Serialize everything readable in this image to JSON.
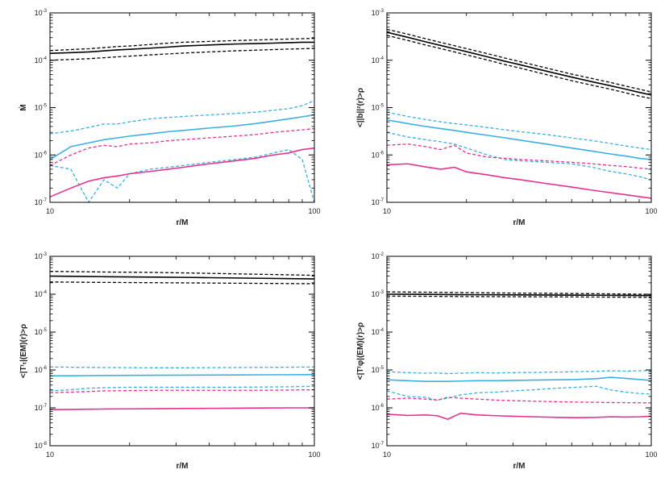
{
  "chart_data": [
    {
      "type": "line",
      "xlabel": "r/M",
      "ylabel": "Ṁ",
      "xscale": "log",
      "yscale": "log",
      "xlim": [
        10,
        100
      ],
      "ylim": [
        1e-07,
        0.001
      ],
      "x_ticks": [
        "10",
        "100"
      ],
      "y_ticks": [
        {
          "base": "10",
          "exp": "-7"
        },
        {
          "base": "10",
          "exp": "-6"
        },
        {
          "base": "10",
          "exp": "-5"
        },
        {
          "base": "10",
          "exp": "-4"
        },
        {
          "base": "10",
          "exp": "-3"
        }
      ],
      "x": [
        10,
        12,
        14,
        16,
        18,
        20,
        24,
        28,
        32,
        40,
        50,
        60,
        70,
        80,
        90,
        100
      ],
      "series": [
        {
          "name": "black-solid",
          "color": "#000000",
          "dash": "solid",
          "values": [
            0.00014,
            0.000145,
            0.00015,
            0.000158,
            0.000165,
            0.00017,
            0.00018,
            0.00019,
            0.0002,
            0.00021,
            0.00022,
            0.000225,
            0.00023,
            0.000235,
            0.00024,
            0.00024
          ]
        },
        {
          "name": "black-dashed-upper",
          "color": "#000000",
          "dash": "dashed",
          "values": [
            0.00016,
            0.000168,
            0.000175,
            0.000185,
            0.000195,
            0.0002,
            0.000215,
            0.00023,
            0.00024,
            0.00025,
            0.00026,
            0.000268,
            0.000275,
            0.00028,
            0.000285,
            0.00029
          ]
        },
        {
          "name": "black-dashed-lower",
          "color": "#000000",
          "dash": "dashed",
          "values": [
            0.0001,
            0.000104,
            0.000108,
            0.000113,
            0.000118,
            0.000122,
            0.00013,
            0.000136,
            0.000142,
            0.00015,
            0.000158,
            0.000163,
            0.000168,
            0.000172,
            0.000175,
            0.000178
          ]
        },
        {
          "name": "cyan-solid",
          "color": "#3bb0e0",
          "dash": "solid",
          "values": [
            8e-07,
            1.5e-06,
            1.8e-06,
            2.1e-06,
            2.3e-06,
            2.5e-06,
            2.8e-06,
            3.1e-06,
            3.3e-06,
            3.7e-06,
            4.1e-06,
            4.6e-06,
            5.2e-06,
            5.8e-06,
            6.4e-06,
            7e-06
          ]
        },
        {
          "name": "cyan-dashed-upper",
          "color": "#3bb0e0",
          "dash": "dashed",
          "values": [
            2.8e-06,
            3.2e-06,
            3.8e-06,
            4.5e-06,
            4.5e-06,
            5e-06,
            5.8e-06,
            6.2e-06,
            6.5e-06,
            7e-06,
            7.5e-06,
            8e-06,
            8.8e-06,
            9.5e-06,
            1.1e-05,
            1.4e-05
          ]
        },
        {
          "name": "cyan-dashed-lower",
          "color": "#3bb0e0",
          "dash": "dashed",
          "values": [
            6e-07,
            5e-07,
            1e-07,
            3e-07,
            2e-07,
            4e-07,
            5e-07,
            5.5e-07,
            6e-07,
            7e-07,
            8e-07,
            9e-07,
            1.1e-06,
            1.3e-06,
            8e-07,
            1e-07
          ]
        },
        {
          "name": "magenta-dashed",
          "color": "#e8308f",
          "dash": "dashed",
          "values": [
            6e-07,
            1e-06,
            1.4e-06,
            1.6e-06,
            1.5e-06,
            1.7e-06,
            1.8e-06,
            2e-06,
            2.1e-06,
            2.3e-06,
            2.5e-06,
            2.7e-06,
            3e-06,
            3.2e-06,
            3.4e-06,
            3.6e-06
          ]
        },
        {
          "name": "magenta-solid",
          "color": "#e8308f",
          "dash": "solid",
          "values": [
            1.3e-07,
            2e-07,
            2.8e-07,
            3.3e-07,
            3.6e-07,
            4e-07,
            4.5e-07,
            5e-07,
            5.5e-07,
            6.5e-07,
            7.5e-07,
            8.5e-07,
            1e-06,
            1.1e-06,
            1.3e-06,
            1.4e-06
          ]
        }
      ]
    },
    {
      "type": "line",
      "xlabel": "r/M",
      "ylabel": "<||b||²(r)>ρ",
      "xscale": "log",
      "yscale": "log",
      "xlim": [
        10,
        100
      ],
      "ylim": [
        1e-07,
        0.001
      ],
      "x_ticks": [
        "10",
        "100"
      ],
      "y_ticks": [
        {
          "base": "10",
          "exp": "-7"
        },
        {
          "base": "10",
          "exp": "-6"
        },
        {
          "base": "10",
          "exp": "-5"
        },
        {
          "base": "10",
          "exp": "-4"
        },
        {
          "base": "10",
          "exp": "-3"
        }
      ],
      "x": [
        10,
        12,
        14,
        16,
        18,
        20,
        24,
        28,
        32,
        40,
        50,
        60,
        70,
        80,
        90,
        100
      ],
      "series": [
        {
          "name": "black-solid",
          "color": "#000000",
          "dash": "solid",
          "values": [
            0.00039,
            0.000305,
            0.000245,
            0.000205,
            0.000175,
            0.000152,
            0.000118,
            9.5e-05,
            8e-05,
            5.9e-05,
            4.4e-05,
            3.5e-05,
            2.9e-05,
            2.45e-05,
            2.1e-05,
            1.85e-05
          ]
        },
        {
          "name": "black-dashed-upper",
          "color": "#000000",
          "dash": "dashed",
          "values": [
            0.00045,
            0.000355,
            0.000285,
            0.000238,
            0.000203,
            0.000176,
            0.000138,
            0.000111,
            9.3e-05,
            6.9e-05,
            5.1e-05,
            4.1e-05,
            3.4e-05,
            2.85e-05,
            2.45e-05,
            2.15e-05
          ]
        },
        {
          "name": "black-dashed-lower",
          "color": "#000000",
          "dash": "dashed",
          "values": [
            0.000335,
            0.000262,
            0.00021,
            0.000176,
            0.00015,
            0.00013,
            0.000101,
            8.1e-05,
            6.8e-05,
            5e-05,
            3.7e-05,
            2.95e-05,
            2.45e-05,
            2.05e-05,
            1.75e-05,
            1.55e-05
          ]
        },
        {
          "name": "cyan-dashed-upper",
          "color": "#3bb0e0",
          "dash": "dashed",
          "values": [
            8e-06,
            6.5e-06,
            5.6e-06,
            5e-06,
            4.6e-06,
            4.3e-06,
            3.8e-06,
            3.4e-06,
            3.1e-06,
            2.7e-06,
            2.3e-06,
            2e-06,
            1.75e-06,
            1.55e-06,
            1.4e-06,
            1.3e-06
          ]
        },
        {
          "name": "cyan-solid",
          "color": "#3bb0e0",
          "dash": "solid",
          "values": [
            5.5e-06,
            4.6e-06,
            4e-06,
            3.6e-06,
            3.3e-06,
            3e-06,
            2.6e-06,
            2.3e-06,
            2.05e-06,
            1.7e-06,
            1.4e-06,
            1.2e-06,
            1.05e-06,
            9.5e-07,
            8.5e-07,
            8e-07
          ]
        },
        {
          "name": "cyan-dashed-lower",
          "color": "#3bb0e0",
          "dash": "dashed",
          "values": [
            3e-06,
            2.4e-06,
            2.1e-06,
            1.9e-06,
            1.7e-06,
            1.4e-06,
            1e-06,
            8e-07,
            7.5e-07,
            7e-07,
            6.5e-07,
            5.5e-07,
            4.5e-07,
            4e-07,
            3.5e-07,
            3e-07
          ]
        },
        {
          "name": "magenta-dashed",
          "color": "#e8308f",
          "dash": "dashed",
          "values": [
            1.6e-06,
            1.7e-06,
            1.5e-06,
            1.3e-06,
            1.6e-06,
            1.1e-06,
            9e-07,
            8.5e-07,
            8e-07,
            7.5e-07,
            7e-07,
            6.5e-07,
            6e-07,
            5.7e-07,
            5.3e-07,
            5e-07
          ]
        },
        {
          "name": "magenta-solid",
          "color": "#e8308f",
          "dash": "solid",
          "values": [
            6.2e-07,
            6.5e-07,
            5.6e-07,
            5e-07,
            5.5e-07,
            4.4e-07,
            3.8e-07,
            3.3e-07,
            3e-07,
            2.5e-07,
            2.1e-07,
            1.8e-07,
            1.6e-07,
            1.45e-07,
            1.32e-07,
            1.22e-07
          ]
        }
      ]
    },
    {
      "type": "line",
      "xlabel": "r/M",
      "ylabel": "<|Tʳₜ|(EM)(r)>ρ",
      "xscale": "log",
      "yscale": "log",
      "xlim": [
        10,
        100
      ],
      "ylim": [
        1e-08,
        0.001
      ],
      "x_ticks": [
        "10",
        "100"
      ],
      "y_ticks": [
        {
          "base": "10",
          "exp": "-8"
        },
        {
          "base": "10",
          "exp": "-7"
        },
        {
          "base": "10",
          "exp": "-6"
        },
        {
          "base": "10",
          "exp": "-5"
        },
        {
          "base": "10",
          "exp": "-4"
        },
        {
          "base": "10",
          "exp": "-3"
        }
      ],
      "x": [
        10,
        12,
        14,
        16,
        20,
        25,
        32,
        40,
        50,
        63,
        80,
        100
      ],
      "series": [
        {
          "name": "black-dashed-upper",
          "color": "#000000",
          "dash": "dashed",
          "values": [
            0.0004,
            0.000395,
            0.00039,
            0.000385,
            0.00038,
            0.000375,
            0.000365,
            0.000355,
            0.000345,
            0.000335,
            0.000325,
            0.000315
          ]
        },
        {
          "name": "black-solid",
          "color": "#000000",
          "dash": "solid",
          "values": [
            0.0003,
            0.000296,
            0.000293,
            0.00029,
            0.000286,
            0.000282,
            0.000278,
            0.000273,
            0.000268,
            0.000263,
            0.000258,
            0.000253
          ]
        },
        {
          "name": "black-dashed-lower",
          "color": "#000000",
          "dash": "dashed",
          "values": [
            0.00021,
            0.000208,
            0.000206,
            0.000205,
            0.000203,
            0.000201,
            0.000199,
            0.000197,
            0.000195,
            0.000193,
            0.000191,
            0.000189
          ]
        },
        {
          "name": "cyan-dashed-upper",
          "color": "#3bb0e0",
          "dash": "dashed",
          "values": [
            1.2e-06,
            1.18e-06,
            1.17e-06,
            1.16e-06,
            1.15e-06,
            1.14e-06,
            1.14e-06,
            1.15e-06,
            1.16e-06,
            1.17e-06,
            1.18e-06,
            1.2e-06
          ]
        },
        {
          "name": "cyan-solid",
          "color": "#3bb0e0",
          "dash": "solid",
          "values": [
            7e-07,
            7.05e-07,
            7.1e-07,
            7.15e-07,
            7.2e-07,
            7.25e-07,
            7.3e-07,
            7.35e-07,
            7.4e-07,
            7.45e-07,
            7.5e-07,
            7.55e-07
          ]
        },
        {
          "name": "cyan-dashed-lower",
          "color": "#3bb0e0",
          "dash": "dashed",
          "values": [
            2.8e-07,
            3e-07,
            3.3e-07,
            3.4e-07,
            3.5e-07,
            3.5e-07,
            3.5e-07,
            3.5e-07,
            3.5e-07,
            3.55e-07,
            3.6e-07,
            3.7e-07
          ]
        },
        {
          "name": "magenta-dashed",
          "color": "#e8308f",
          "dash": "dashed",
          "values": [
            2.5e-07,
            2.6e-07,
            2.7e-07,
            2.8e-07,
            2.85e-07,
            2.9e-07,
            2.9e-07,
            2.9e-07,
            2.9e-07,
            2.9e-07,
            2.95e-07,
            3e-07
          ]
        },
        {
          "name": "magenta-solid",
          "color": "#e8308f",
          "dash": "solid",
          "values": [
            9e-08,
            9.1e-08,
            9.2e-08,
            9.3e-08,
            9.4e-08,
            9.5e-08,
            9.6e-08,
            9.7e-08,
            9.8e-08,
            9.9e-08,
            1e-07,
            1e-07
          ]
        }
      ]
    },
    {
      "type": "line",
      "xlabel": "r/M",
      "ylabel": "<|Tʳφ|(EM)(r)>ρ",
      "xscale": "log",
      "yscale": "log",
      "xlim": [
        10,
        100
      ],
      "ylim": [
        1e-07,
        0.01
      ],
      "x_ticks": [
        "10",
        "100"
      ],
      "y_ticks": [
        {
          "base": "10",
          "exp": "-7"
        },
        {
          "base": "10",
          "exp": "-6"
        },
        {
          "base": "10",
          "exp": "-5"
        },
        {
          "base": "10",
          "exp": "-4"
        },
        {
          "base": "10",
          "exp": "-3"
        },
        {
          "base": "10",
          "exp": "-2"
        }
      ],
      "x": [
        10,
        12,
        14,
        15.5,
        17,
        19,
        22,
        26,
        30,
        36,
        44,
        52,
        62,
        70,
        80,
        90,
        100
      ],
      "series": [
        {
          "name": "black-dashed-upper",
          "color": "#000000",
          "dash": "dashed",
          "values": [
            0.00115,
            0.00114,
            0.00113,
            0.00112,
            0.00111,
            0.0011,
            0.00109,
            0.00108,
            0.00107,
            0.00106,
            0.00105,
            0.00104,
            0.00103,
            0.00102,
            0.00101,
            0.001,
            0.00099
          ]
        },
        {
          "name": "black-solid",
          "color": "#000000",
          "dash": "solid",
          "values": [
            0.001,
            0.000995,
            0.00099,
            0.000985,
            0.00098,
            0.000975,
            0.00097,
            0.000965,
            0.00096,
            0.000955,
            0.00095,
            0.000945,
            0.00094,
            0.000935,
            0.00093,
            0.000925,
            0.00092
          ]
        },
        {
          "name": "black-dashed-lower",
          "color": "#000000",
          "dash": "dashed",
          "values": [
            0.00089,
            0.000886,
            0.000882,
            0.000878,
            0.000874,
            0.00087,
            0.000866,
            0.000862,
            0.000858,
            0.000854,
            0.00085,
            0.000846,
            0.000842,
            0.000838,
            0.000834,
            0.00083,
            0.000826
          ]
        },
        {
          "name": "cyan-dashed-upper",
          "color": "#3bb0e0",
          "dash": "dashed",
          "values": [
            9e-06,
            8.5e-06,
            8.2e-06,
            8.3e-06,
            8e-06,
            8.2e-06,
            8.5e-06,
            8.3e-06,
            8.5e-06,
            8.6e-06,
            8.8e-06,
            9e-06,
            9.2e-06,
            9.5e-06,
            9.3e-06,
            9.5e-06,
            9.6e-06
          ]
        },
        {
          "name": "cyan-solid",
          "color": "#3bb0e0",
          "dash": "solid",
          "values": [
            5.5e-06,
            5.2e-06,
            5e-06,
            5e-06,
            5e-06,
            5.1e-06,
            5.2e-06,
            5.2e-06,
            5.3e-06,
            5.4e-06,
            5.5e-06,
            5.6e-06,
            5.9e-06,
            6.4e-06,
            6e-06,
            5.6e-06,
            5.3e-06
          ]
        },
        {
          "name": "cyan-dashed-lower",
          "color": "#3bb0e0",
          "dash": "dashed",
          "values": [
            2.8e-06,
            2e-06,
            1.9e-06,
            1.6e-06,
            1.8e-06,
            2.2e-06,
            2.5e-06,
            2.6e-06,
            2.8e-06,
            3e-06,
            3.3e-06,
            3.5e-06,
            3.7e-06,
            3e-06,
            2.6e-06,
            2.4e-06,
            2.3e-06
          ]
        },
        {
          "name": "magenta-dashed",
          "color": "#e8308f",
          "dash": "dashed",
          "values": [
            1.7e-06,
            1.8e-06,
            1.7e-06,
            1.6e-06,
            1.9e-06,
            1.8e-06,
            1.7e-06,
            1.6e-06,
            1.55e-06,
            1.5e-06,
            1.45e-06,
            1.42e-06,
            1.4e-06,
            1.38e-06,
            1.37e-06,
            1.36e-06,
            1.35e-06
          ]
        },
        {
          "name": "magenta-solid",
          "color": "#e8308f",
          "dash": "solid",
          "values": [
            6.8e-07,
            6.3e-07,
            6.5e-07,
            6.2e-07,
            5e-07,
            7.2e-07,
            6.5e-07,
            6.2e-07,
            6e-07,
            5.8e-07,
            5.6e-07,
            5.5e-07,
            5.6e-07,
            5.8e-07,
            5.7e-07,
            5.8e-07,
            6e-07
          ]
        }
      ]
    }
  ]
}
